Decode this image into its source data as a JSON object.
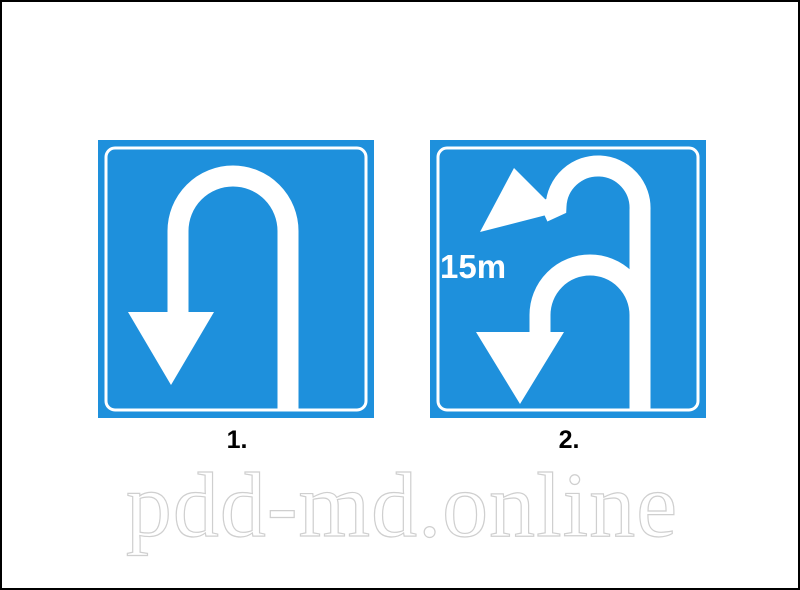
{
  "colors": {
    "sign_blue": "#1e90dc",
    "symbol": "#ffffff",
    "frame": "#000000",
    "caption": "#000000"
  },
  "signs": [
    {
      "caption": "1.",
      "icon": "u-turn-arrow-icon"
    },
    {
      "caption": "2.",
      "icon": "u-turn-with-distance-arrow-icon",
      "distance_label": "15m"
    }
  ],
  "watermark": "pdd-md.online"
}
